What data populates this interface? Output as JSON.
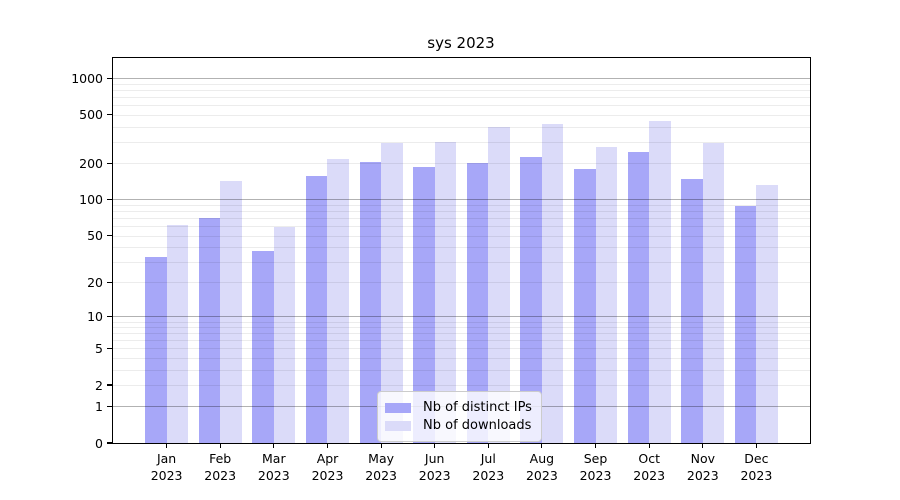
{
  "chart_data": {
    "type": "bar",
    "title": "sys 2023",
    "categories": [
      "Jan 2023",
      "Feb 2023",
      "Mar 2023",
      "Apr 2023",
      "May 2023",
      "Jun 2023",
      "Jul 2023",
      "Aug 2023",
      "Sep 2023",
      "Oct 2023",
      "Nov 2023",
      "Dec 2023"
    ],
    "series": [
      {
        "name": "Nb of distinct IPs",
        "color": "#a7a7f8",
        "values": [
          33,
          70,
          37,
          157,
          203,
          185,
          200,
          226,
          178,
          249,
          148,
          89
        ]
      },
      {
        "name": "Nb of downloads",
        "color": "#dbdbf9",
        "values": [
          61,
          142,
          59,
          215,
          294,
          297,
          395,
          423,
          272,
          448,
          295,
          132
        ]
      }
    ],
    "xlabel": "",
    "ylabel": "",
    "yscale": "log10(value+1)",
    "yticks": [
      0,
      1,
      2,
      5,
      10,
      20,
      50,
      100,
      200,
      500,
      1000
    ],
    "ylim": [
      0,
      1470
    ],
    "grid": "major decades dark, log minors light, drawn over bars",
    "legend_position": "lower center inside plot"
  },
  "colors": {
    "background": "#ffffff",
    "spine": "#000000",
    "grid_major": "rgba(0,0,0,0.30)",
    "grid_minor": "rgba(0,0,0,0.075)",
    "text": "#000000",
    "legend_border": "#cccccc",
    "legend_background": "rgba(255,255,255,0.8)"
  }
}
